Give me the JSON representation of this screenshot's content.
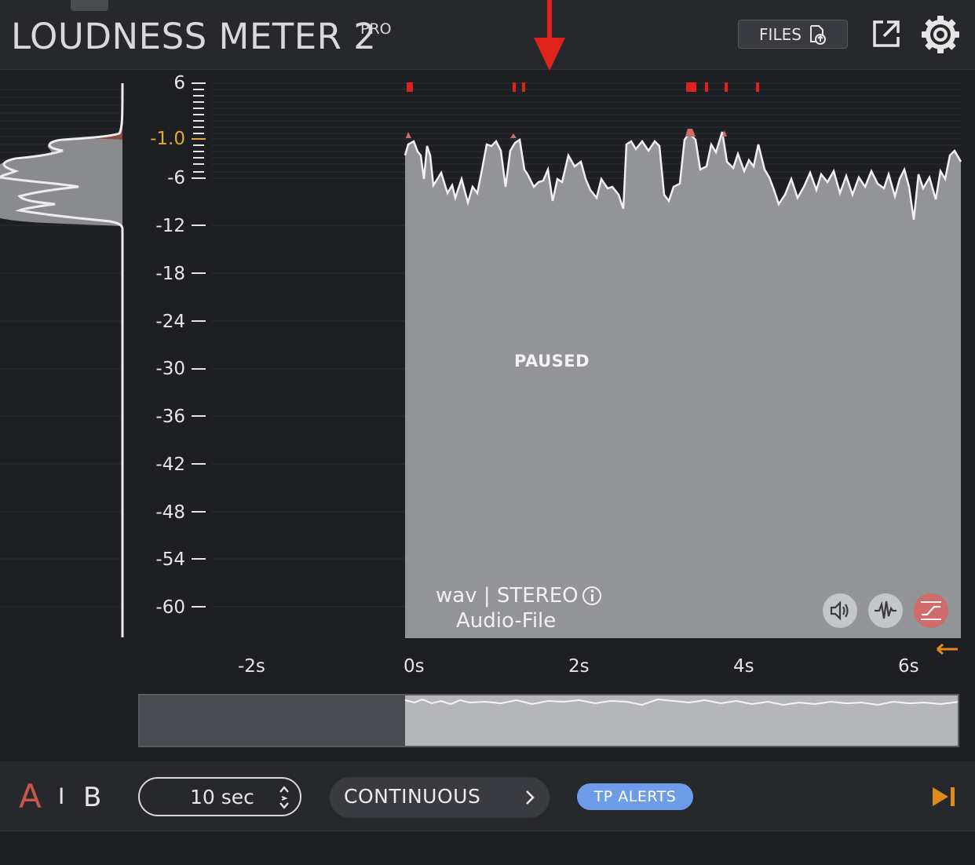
{
  "header": {
    "title": "LOUDNESS METER 2",
    "title_sup": "PRO",
    "files_label": "FILES",
    "icons": [
      "upload-icon",
      "export-icon",
      "gear-icon"
    ]
  },
  "graph": {
    "y_axis_labels": [
      "6",
      "-1.0",
      "-6",
      "-12",
      "-18",
      "-24",
      "-30",
      "-36",
      "-42",
      "-48",
      "-54",
      "-60"
    ],
    "limit_label": "-1.0",
    "x_axis_labels": [
      "-2s",
      "0s",
      "2s",
      "4s",
      "6s"
    ],
    "status": "PAUSED",
    "file_type": "wav | STEREO",
    "source_label": "Audio-File",
    "colors": {
      "signal": "#9a9b9e",
      "clip": "#e0221c",
      "limit": "#e2a83a",
      "accent": "#cf6b6b"
    }
  },
  "bottom": {
    "a_label": "A",
    "separator": "I",
    "b_label": "B",
    "time_window": "10 sec",
    "mode": "CONTINUOUS",
    "tp_alerts": "TP ALERTS",
    "colors": {
      "a_active": "#c9574a",
      "tp": "#6d9de8",
      "play": "#e08a1e"
    }
  }
}
